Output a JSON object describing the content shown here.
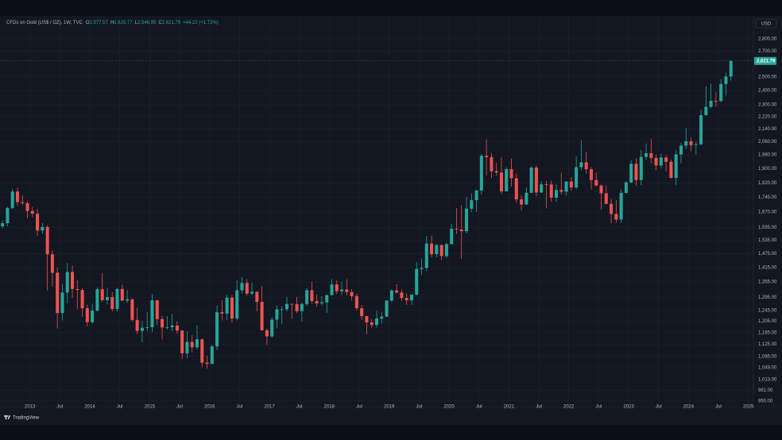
{
  "chart_data": {
    "type": "candlestick",
    "symbol": "CFDs on Gold (US$ / OZ), 1W, TVC",
    "ohlc_legend": [
      {
        "key": "O",
        "text": "2,577.57"
      },
      {
        "key": "H",
        "text": "2,625.77"
      },
      {
        "key": "L",
        "text": "2,546.95"
      },
      {
        "key": "C",
        "text": "2,621.79"
      }
    ],
    "change": "+44.22 (+1.72%)",
    "currency": "USD",
    "brand": "TradingView",
    "log_scale": true,
    "grid": true,
    "up_color": "#26a69a",
    "down_color": "#ef5350",
    "price_line": {
      "value": 2621.79,
      "label": "2,621.79"
    },
    "xlim": [
      "2012-07",
      "2025-02"
    ],
    "ylim": [
      934,
      2992
    ],
    "xticks": [
      {
        "value": "2013-01",
        "label": "2013"
      },
      {
        "value": "2013-07",
        "label": "Jul"
      },
      {
        "value": "2014-01",
        "label": "2014"
      },
      {
        "value": "2014-07",
        "label": "Jul"
      },
      {
        "value": "2015-01",
        "label": "2015"
      },
      {
        "value": "2015-07",
        "label": "Jul"
      },
      {
        "value": "2016-01",
        "label": "2016"
      },
      {
        "value": "2016-07",
        "label": "Jul"
      },
      {
        "value": "2017-01",
        "label": "2017"
      },
      {
        "value": "2017-07",
        "label": "Jul"
      },
      {
        "value": "2018-01",
        "label": "2018"
      },
      {
        "value": "2018-07",
        "label": "Jul"
      },
      {
        "value": "2019-01",
        "label": "2019"
      },
      {
        "value": "2019-07",
        "label": "Jul"
      },
      {
        "value": "2020-01",
        "label": "2020"
      },
      {
        "value": "2020-07",
        "label": "Jul"
      },
      {
        "value": "2021-01",
        "label": "2021"
      },
      {
        "value": "2021-07",
        "label": "Jul"
      },
      {
        "value": "2022-01",
        "label": "2022"
      },
      {
        "value": "2022-07",
        "label": "Jul"
      },
      {
        "value": "2023-01",
        "label": "2023"
      },
      {
        "value": "2023-07",
        "label": "Jul"
      },
      {
        "value": "2024-01",
        "label": "2024"
      },
      {
        "value": "2024-07",
        "label": "Jul"
      },
      {
        "value": "2025-01",
        "label": "2025"
      }
    ],
    "yticks": [
      {
        "value": 2800,
        "label": "2,800.00"
      },
      {
        "value": 2700,
        "label": "2,700.00"
      },
      {
        "value": 2500,
        "label": "2,500.00"
      },
      {
        "value": 2400,
        "label": "2,400.00"
      },
      {
        "value": 2300,
        "label": "2,300.00"
      },
      {
        "value": 2220,
        "label": "2,220.00"
      },
      {
        "value": 2140,
        "label": "2,140.00"
      },
      {
        "value": 2060,
        "label": "2,060.00"
      },
      {
        "value": 1980,
        "label": "1,980.00"
      },
      {
        "value": 1900,
        "label": "1,900.00"
      },
      {
        "value": 1820,
        "label": "1,820.00"
      },
      {
        "value": 1745,
        "label": "1,745.00"
      },
      {
        "value": 1670,
        "label": "1,670.00"
      },
      {
        "value": 1595,
        "label": "1,595.00"
      },
      {
        "value": 1535,
        "label": "1,535.00"
      },
      {
        "value": 1475,
        "label": "1,475.00"
      },
      {
        "value": 1415,
        "label": "1,415.00"
      },
      {
        "value": 1355,
        "label": "1,355.00"
      },
      {
        "value": 1295,
        "label": "1,295.00"
      },
      {
        "value": 1245,
        "label": "1,245.00"
      },
      {
        "value": 1205,
        "label": "1,205.00"
      },
      {
        "value": 1165,
        "label": "1,165.00"
      },
      {
        "value": 1125,
        "label": "1,125.00"
      },
      {
        "value": 1085,
        "label": "1,085.00"
      },
      {
        "value": 1049,
        "label": "1,049.00"
      },
      {
        "value": 1013,
        "label": "1,013.00"
      },
      {
        "value": 981,
        "label": "981.00"
      },
      {
        "value": 950,
        "label": "950.00"
      }
    ],
    "x": [
      "2012-07",
      "2012-08",
      "2012-09",
      "2012-10",
      "2012-11",
      "2012-12",
      "2013-01",
      "2013-02",
      "2013-03",
      "2013-04",
      "2013-05",
      "2013-06",
      "2013-07",
      "2013-08",
      "2013-09",
      "2013-10",
      "2013-11",
      "2013-12",
      "2014-01",
      "2014-02",
      "2014-03",
      "2014-04",
      "2014-05",
      "2014-06",
      "2014-07",
      "2014-08",
      "2014-09",
      "2014-10",
      "2014-11",
      "2014-12",
      "2015-01",
      "2015-02",
      "2015-03",
      "2015-04",
      "2015-05",
      "2015-06",
      "2015-07",
      "2015-08",
      "2015-09",
      "2015-10",
      "2015-11",
      "2015-12",
      "2016-01",
      "2016-02",
      "2016-03",
      "2016-04",
      "2016-05",
      "2016-06",
      "2016-07",
      "2016-08",
      "2016-09",
      "2016-10",
      "2016-11",
      "2016-12",
      "2017-01",
      "2017-02",
      "2017-03",
      "2017-04",
      "2017-05",
      "2017-06",
      "2017-07",
      "2017-08",
      "2017-09",
      "2017-10",
      "2017-11",
      "2017-12",
      "2018-01",
      "2018-02",
      "2018-03",
      "2018-04",
      "2018-05",
      "2018-06",
      "2018-07",
      "2018-08",
      "2018-09",
      "2018-10",
      "2018-11",
      "2018-12",
      "2019-01",
      "2019-02",
      "2019-03",
      "2019-04",
      "2019-05",
      "2019-06",
      "2019-07",
      "2019-08",
      "2019-09",
      "2019-10",
      "2019-11",
      "2019-12",
      "2020-01",
      "2020-02",
      "2020-03",
      "2020-04",
      "2020-05",
      "2020-06",
      "2020-07",
      "2020-08",
      "2020-09",
      "2020-10",
      "2020-11",
      "2020-12",
      "2021-01",
      "2021-02",
      "2021-03",
      "2021-04",
      "2021-05",
      "2021-06",
      "2021-07",
      "2021-08",
      "2021-09",
      "2021-10",
      "2021-11",
      "2021-12",
      "2022-01",
      "2022-02",
      "2022-03",
      "2022-04",
      "2022-05",
      "2022-06",
      "2022-07",
      "2022-08",
      "2022-09",
      "2022-10",
      "2022-11",
      "2022-12",
      "2023-01",
      "2023-02",
      "2023-03",
      "2023-04",
      "2023-05",
      "2023-06",
      "2023-07",
      "2023-08",
      "2023-09",
      "2023-10",
      "2023-11",
      "2023-12",
      "2024-01",
      "2024-02",
      "2024-03",
      "2024-04",
      "2024-05",
      "2024-06",
      "2024-07",
      "2024-08",
      "2024-09"
    ],
    "candles": [
      [
        1600,
        1630,
        1590,
        1615
      ],
      [
        1615,
        1695,
        1600,
        1690
      ],
      [
        1690,
        1790,
        1685,
        1775
      ],
      [
        1775,
        1796,
        1700,
        1720
      ],
      [
        1720,
        1755,
        1705,
        1715
      ],
      [
        1715,
        1725,
        1640,
        1675
      ],
      [
        1675,
        1695,
        1645,
        1662
      ],
      [
        1662,
        1685,
        1555,
        1580
      ],
      [
        1580,
        1616,
        1565,
        1597
      ],
      [
        1597,
        1605,
        1321,
        1472
      ],
      [
        1472,
        1488,
        1338,
        1393
      ],
      [
        1393,
        1415,
        1180,
        1235
      ],
      [
        1235,
        1348,
        1208,
        1313
      ],
      [
        1313,
        1434,
        1271,
        1396
      ],
      [
        1396,
        1424,
        1292,
        1327
      ],
      [
        1327,
        1362,
        1251,
        1323
      ],
      [
        1323,
        1330,
        1221,
        1253
      ],
      [
        1253,
        1267,
        1187,
        1202
      ],
      [
        1202,
        1270,
        1195,
        1244
      ],
      [
        1244,
        1333,
        1240,
        1326
      ],
      [
        1326,
        1392,
        1277,
        1284
      ],
      [
        1284,
        1331,
        1268,
        1295
      ],
      [
        1295,
        1315,
        1241,
        1250
      ],
      [
        1250,
        1332,
        1240,
        1327
      ],
      [
        1327,
        1345,
        1280,
        1282
      ],
      [
        1282,
        1323,
        1273,
        1287
      ],
      [
        1287,
        1290,
        1205,
        1210
      ],
      [
        1210,
        1255,
        1160,
        1171
      ],
      [
        1171,
        1206,
        1131,
        1182
      ],
      [
        1182,
        1238,
        1170,
        1184
      ],
      [
        1184,
        1307,
        1167,
        1283
      ],
      [
        1283,
        1285,
        1191,
        1213
      ],
      [
        1213,
        1224,
        1142,
        1183
      ],
      [
        1183,
        1224,
        1176,
        1184
      ],
      [
        1184,
        1232,
        1170,
        1190
      ],
      [
        1190,
        1205,
        1162,
        1172
      ],
      [
        1172,
        1175,
        1077,
        1095
      ],
      [
        1095,
        1170,
        1080,
        1133
      ],
      [
        1133,
        1157,
        1098,
        1115
      ],
      [
        1115,
        1191,
        1108,
        1142
      ],
      [
        1142,
        1144,
        1052,
        1065
      ],
      [
        1065,
        1088,
        1046,
        1061
      ],
      [
        1061,
        1124,
        1061,
        1118
      ],
      [
        1118,
        1263,
        1107,
        1238
      ],
      [
        1238,
        1283,
        1208,
        1233
      ],
      [
        1233,
        1304,
        1210,
        1293
      ],
      [
        1293,
        1303,
        1200,
        1215
      ],
      [
        1215,
        1362,
        1208,
        1322
      ],
      [
        1322,
        1375,
        1310,
        1351
      ],
      [
        1351,
        1367,
        1302,
        1309
      ],
      [
        1309,
        1352,
        1302,
        1316
      ],
      [
        1316,
        1318,
        1241,
        1277
      ],
      [
        1277,
        1338,
        1171,
        1173
      ],
      [
        1173,
        1180,
        1123,
        1152
      ],
      [
        1152,
        1220,
        1147,
        1211
      ],
      [
        1211,
        1264,
        1180,
        1249
      ],
      [
        1249,
        1262,
        1195,
        1249
      ],
      [
        1249,
        1296,
        1240,
        1269
      ],
      [
        1269,
        1270,
        1214,
        1268
      ],
      [
        1268,
        1296,
        1236,
        1242
      ],
      [
        1242,
        1274,
        1205,
        1269
      ],
      [
        1269,
        1331,
        1262,
        1322
      ],
      [
        1322,
        1357,
        1271,
        1280
      ],
      [
        1280,
        1306,
        1260,
        1271
      ],
      [
        1271,
        1299,
        1264,
        1275
      ],
      [
        1275,
        1306,
        1236,
        1303
      ],
      [
        1303,
        1366,
        1302,
        1345
      ],
      [
        1345,
        1362,
        1307,
        1318
      ],
      [
        1318,
        1356,
        1303,
        1325
      ],
      [
        1325,
        1366,
        1301,
        1315
      ],
      [
        1315,
        1326,
        1282,
        1299
      ],
      [
        1299,
        1309,
        1245,
        1253
      ],
      [
        1253,
        1265,
        1211,
        1224
      ],
      [
        1224,
        1224,
        1160,
        1201
      ],
      [
        1201,
        1214,
        1182,
        1192
      ],
      [
        1192,
        1243,
        1183,
        1215
      ],
      [
        1215,
        1238,
        1196,
        1222
      ],
      [
        1222,
        1284,
        1221,
        1282
      ],
      [
        1282,
        1326,
        1276,
        1321
      ],
      [
        1321,
        1346,
        1310,
        1313
      ],
      [
        1313,
        1324,
        1281,
        1292
      ],
      [
        1292,
        1310,
        1266,
        1283
      ],
      [
        1283,
        1306,
        1266,
        1305
      ],
      [
        1305,
        1439,
        1301,
        1409
      ],
      [
        1409,
        1453,
        1382,
        1413
      ],
      [
        1413,
        1555,
        1400,
        1520
      ],
      [
        1520,
        1557,
        1459,
        1472
      ],
      [
        1472,
        1517,
        1459,
        1513
      ],
      [
        1513,
        1516,
        1446,
        1464
      ],
      [
        1464,
        1524,
        1455,
        1517
      ],
      [
        1517,
        1611,
        1517,
        1589
      ],
      [
        1589,
        1689,
        1564,
        1585
      ],
      [
        1585,
        1704,
        1451,
        1577
      ],
      [
        1577,
        1747,
        1567,
        1687
      ],
      [
        1687,
        1765,
        1670,
        1730
      ],
      [
        1730,
        1785,
        1670,
        1781
      ],
      [
        1781,
        1984,
        1758,
        1975
      ],
      [
        1975,
        2075,
        1863,
        1967
      ],
      [
        1967,
        1992,
        1849,
        1886
      ],
      [
        1886,
        1933,
        1860,
        1879
      ],
      [
        1879,
        1966,
        1764,
        1776
      ],
      [
        1776,
        1908,
        1776,
        1898
      ],
      [
        1898,
        1959,
        1802,
        1847
      ],
      [
        1847,
        1872,
        1717,
        1734
      ],
      [
        1734,
        1756,
        1677,
        1708
      ],
      [
        1708,
        1798,
        1705,
        1769
      ],
      [
        1769,
        1913,
        1766,
        1907
      ],
      [
        1907,
        1917,
        1750,
        1770
      ],
      [
        1770,
        1832,
        1766,
        1814
      ],
      [
        1814,
        1834,
        1688,
        1813
      ],
      [
        1813,
        1834,
        1721,
        1743
      ],
      [
        1743,
        1814,
        1722,
        1783
      ],
      [
        1783,
        1877,
        1759,
        1774
      ],
      [
        1774,
        1831,
        1753,
        1829
      ],
      [
        1829,
        1853,
        1780,
        1797
      ],
      [
        1797,
        1974,
        1787,
        1909
      ],
      [
        1909,
        2070,
        1890,
        1937
      ],
      [
        1937,
        1998,
        1872,
        1897
      ],
      [
        1897,
        1910,
        1787,
        1837
      ],
      [
        1837,
        1879,
        1805,
        1807
      ],
      [
        1807,
        1814,
        1681,
        1766
      ],
      [
        1766,
        1808,
        1710,
        1711
      ],
      [
        1711,
        1735,
        1615,
        1660
      ],
      [
        1660,
        1730,
        1617,
        1633
      ],
      [
        1633,
        1786,
        1616,
        1768
      ],
      [
        1768,
        1833,
        1765,
        1824
      ],
      [
        1824,
        1949,
        1822,
        1928
      ],
      [
        1928,
        1960,
        1804,
        1837
      ],
      [
        1837,
        2010,
        1809,
        1969
      ],
      [
        1969,
        2049,
        1950,
        1990
      ],
      [
        1990,
        2079,
        1932,
        1963
      ],
      [
        1963,
        1983,
        1893,
        1919
      ],
      [
        1919,
        1988,
        1903,
        1965
      ],
      [
        1965,
        1980,
        1885,
        1940
      ],
      [
        1940,
        1953,
        1846,
        1849
      ],
      [
        1849,
        2009,
        1810,
        1983
      ],
      [
        1983,
        2052,
        1931,
        2036
      ],
      [
        2036,
        2146,
        2016,
        2063
      ],
      [
        2063,
        2088,
        2002,
        2039
      ],
      [
        2039,
        2060,
        1985,
        2044
      ],
      [
        2044,
        2265,
        2039,
        2230
      ],
      [
        2230,
        2431,
        2228,
        2286
      ],
      [
        2286,
        2450,
        2277,
        2327
      ],
      [
        2327,
        2387,
        2286,
        2326
      ],
      [
        2326,
        2483,
        2318,
        2447
      ],
      [
        2447,
        2531,
        2364,
        2503
      ],
      [
        2503,
        2625.77,
        2472,
        2621.79
      ]
    ]
  }
}
